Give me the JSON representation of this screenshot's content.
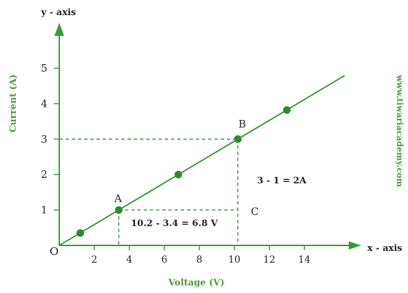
{
  "chart_data": {
    "type": "line",
    "axis_titles": {
      "y_top": "y - axis",
      "x_right": "x - axis"
    },
    "ylabel": "Current (A)",
    "xlabel": "Voltage (V)",
    "origin_label": "O",
    "watermark": "www.tiwariacademy.com",
    "x_ticks": [
      "2",
      "4",
      "6",
      "8",
      "10",
      "12",
      "14"
    ],
    "y_ticks": [
      "1",
      "2",
      "3",
      "4",
      "5"
    ],
    "xlim": [
      0,
      16.5
    ],
    "ylim": [
      0,
      6
    ],
    "line": {
      "x_end": 16.3,
      "slope": 0.2941
    },
    "series": [
      {
        "points": [
          {
            "x": 1.2,
            "y": 0.35
          },
          {
            "x": 3.4,
            "y": 1
          },
          {
            "x": 6.8,
            "y": 2
          },
          {
            "x": 10.2,
            "y": 3
          },
          {
            "x": 13.0,
            "y": 3.82
          }
        ]
      }
    ],
    "annotations": {
      "point_a": {
        "label": "A",
        "x": 3.4,
        "y": 1
      },
      "point_b": {
        "label": "B",
        "x": 10.2,
        "y": 3
      },
      "point_c": {
        "label": "C",
        "x": 10.2,
        "y": 1
      },
      "current_change": "3 - 1 = 2A",
      "voltage_change": "10.2 - 3.4 = 6.8 V"
    },
    "colors": {
      "line": "#2e8b2e",
      "point": "#2e8b2e",
      "axis": "#3a9a3a",
      "axis_label": "#4a9a3a",
      "text": "#222222"
    }
  }
}
